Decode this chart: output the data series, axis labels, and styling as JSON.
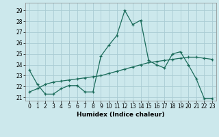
{
  "xlabel": "Humidex (Indice chaleur)",
  "ylabel": "",
  "bg_color": "#cce8ec",
  "grid_color": "#aaccd4",
  "line_color": "#1a6b5a",
  "xlim": [
    -0.5,
    23.5
  ],
  "ylim": [
    20.7,
    29.7
  ],
  "yticks": [
    21,
    22,
    23,
    24,
    25,
    26,
    27,
    28,
    29
  ],
  "xticks": [
    0,
    1,
    2,
    3,
    4,
    5,
    6,
    7,
    8,
    9,
    10,
    11,
    12,
    13,
    14,
    15,
    16,
    17,
    18,
    19,
    20,
    21,
    22,
    23
  ],
  "line1_x": [
    0,
    1,
    2,
    3,
    4,
    5,
    6,
    7,
    8,
    9,
    10,
    11,
    12,
    13,
    14,
    15,
    16,
    17,
    18,
    19,
    20,
    21,
    22,
    23
  ],
  "line1_y": [
    23.5,
    22.2,
    21.3,
    21.3,
    21.8,
    22.1,
    22.1,
    21.5,
    21.5,
    24.8,
    25.8,
    26.7,
    29.0,
    27.7,
    28.1,
    24.4,
    24.0,
    23.7,
    25.0,
    25.2,
    24.0,
    22.7,
    20.9,
    20.9
  ],
  "line2_x": [
    0,
    1,
    2,
    3,
    4,
    5,
    6,
    7,
    8,
    9,
    10,
    11,
    12,
    13,
    14,
    15,
    16,
    17,
    18,
    19,
    20,
    21,
    22,
    23
  ],
  "line2_y": [
    21.5,
    21.8,
    22.2,
    22.4,
    22.5,
    22.6,
    22.7,
    22.8,
    22.9,
    23.0,
    23.2,
    23.4,
    23.6,
    23.8,
    24.0,
    24.2,
    24.3,
    24.4,
    24.5,
    24.6,
    24.7,
    24.7,
    24.6,
    24.5
  ]
}
